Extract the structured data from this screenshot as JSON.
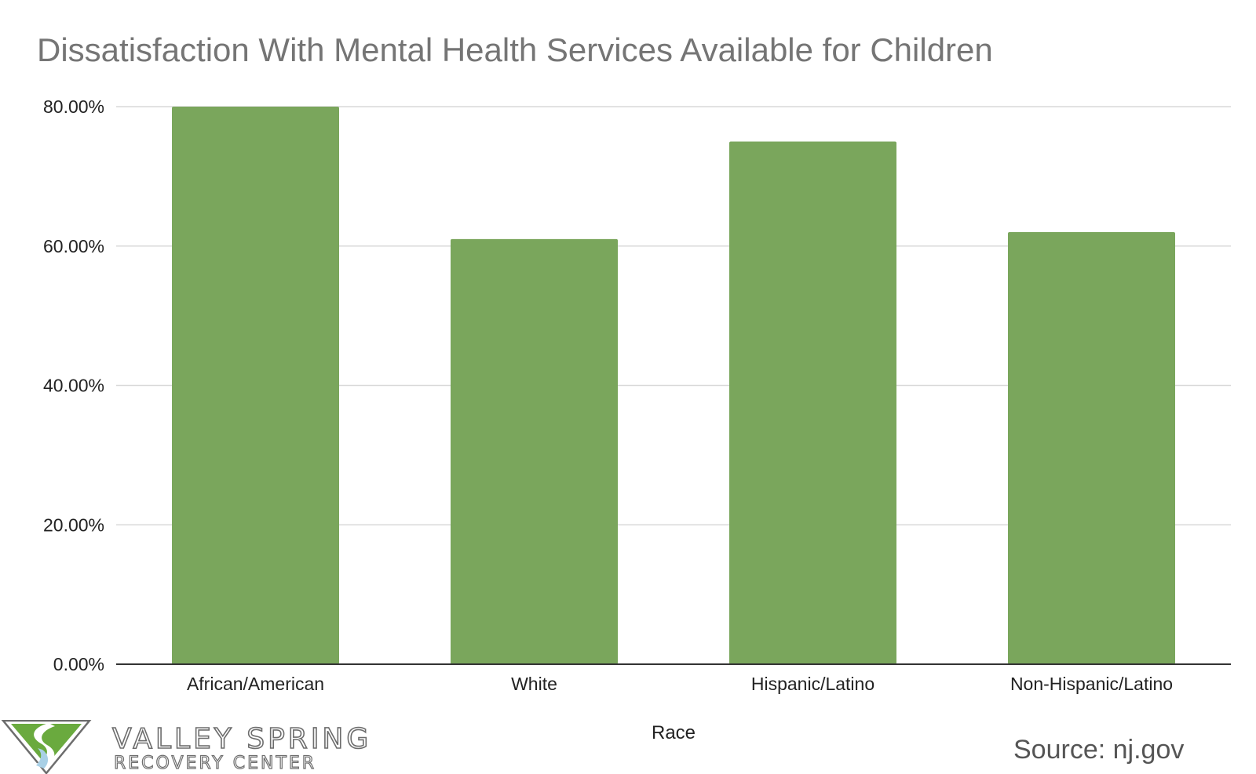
{
  "chart_data": {
    "type": "bar",
    "title": "Dissatisfaction With Mental Health Services Available for Children",
    "xlabel": "Race",
    "ylabel": "",
    "categories": [
      "African/American",
      "White",
      "Hispanic/Latino",
      "Non-Hispanic/Latino"
    ],
    "values": [
      0.8,
      0.61,
      0.75,
      0.62
    ],
    "ylim": [
      0,
      0.8
    ],
    "yticks": [
      "0.00%",
      "20.00%",
      "40.00%",
      "60.00%",
      "80.00%"
    ],
    "grid": true,
    "legend": "none",
    "bar_color": "#7aa65c"
  },
  "branding": {
    "logo_name": "VALLEY SPRING",
    "logo_sub": "RECOVERY CENTER",
    "logo_colors": {
      "green": "#6aaa3e",
      "blue": "#a9d0e6",
      "outline": "#6d6d6d"
    }
  },
  "source": "Source: nj.gov"
}
